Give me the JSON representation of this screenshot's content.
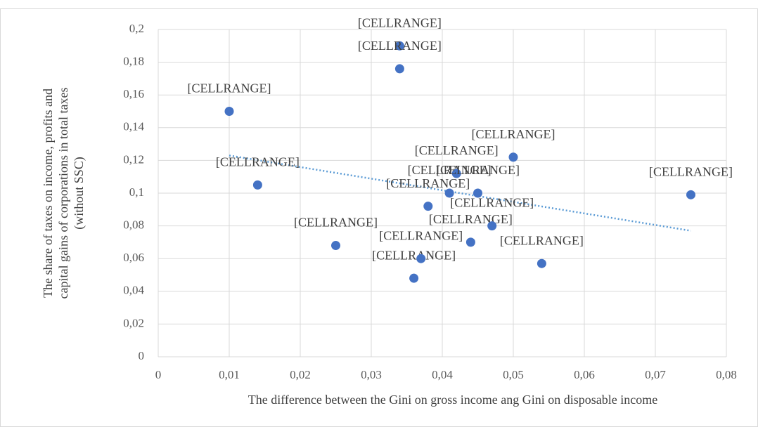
{
  "chart_data": {
    "type": "scatter",
    "xlabel": "The difference between the Gini  on gross income ang Gini  on disposable income",
    "ylabel": [
      "The share of taxes on income, profits and",
      "capital gains of corporations in total taxes",
      "(without SSC)"
    ],
    "x": [
      0.01,
      0.034,
      0.034,
      0.014,
      0.025,
      0.036,
      0.037,
      0.038,
      0.041,
      0.042,
      0.044,
      0.045,
      0.047,
      0.05,
      0.054,
      0.075
    ],
    "values": [
      0.15,
      0.19,
      0.176,
      0.105,
      0.068,
      0.048,
      0.06,
      0.092,
      0.1,
      0.112,
      0.07,
      0.1,
      0.08,
      0.122,
      0.057,
      0.099
    ],
    "data_labels": [
      "[CELLRANGE]",
      "[CELLRANGE]",
      "[CELLRANGE]",
      "[CELLRANGE]",
      "[CELLRANGE]",
      "[CELLRANGE]",
      "[CELLRANGE]",
      "[CELLRANGE]",
      "[CELLRANGE]",
      "[CELLRANGE]",
      "[CELLRANGE]",
      "[CELLRANGE]",
      "[CELLRANGE]",
      "[CELLRANGE]",
      "[CELLRANGE]",
      "[CELLRANGE]"
    ],
    "color": "#4472c4",
    "trendline": {
      "x": [
        0.01,
        0.075
      ],
      "values": [
        0.123,
        0.077
      ],
      "color": "#5b9bd5"
    },
    "xlim": [
      0,
      0.08
    ],
    "xticks": [
      0,
      {
        "value": 0.01,
        "label": "0,01"
      },
      {
        "value": 0.02,
        "label": "0,02"
      },
      {
        "value": 0.03,
        "label": "0,03"
      },
      {
        "value": 0.04,
        "label": "0,04"
      },
      {
        "value": 0.05,
        "label": "0,05"
      },
      {
        "value": 0.06,
        "label": "0,06"
      },
      {
        "value": 0.07,
        "label": "0,07"
      },
      {
        "value": 0.08,
        "label": "0,08"
      }
    ],
    "ylim": [
      0,
      0.2
    ],
    "yticks": [
      0,
      {
        "value": 0.02,
        "label": "0,02"
      },
      {
        "value": 0.04,
        "label": "0,04"
      },
      {
        "value": 0.06,
        "label": "0,06"
      },
      {
        "value": 0.08,
        "label": "0,08"
      },
      {
        "value": 0.1,
        "label": "0,1"
      },
      {
        "value": 0.12,
        "label": "0,12"
      },
      {
        "value": 0.14,
        "label": "0,14"
      },
      {
        "value": 0.16,
        "label": "0,16"
      },
      {
        "value": 0.18,
        "label": "0,18"
      },
      {
        "value": 0.2,
        "label": "0,2"
      }
    ],
    "grid": true
  }
}
